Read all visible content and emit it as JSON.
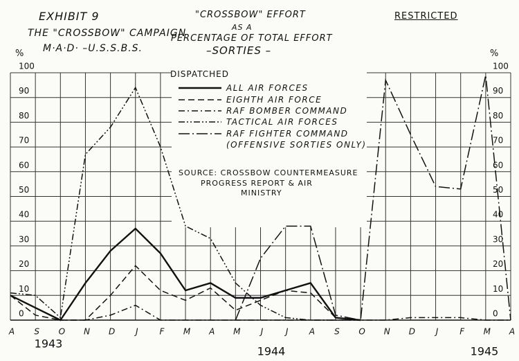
{
  "chart_data": {
    "type": "line",
    "exhibit": "EXHIBIT 9",
    "campaign": "THE \"CROSSBOW\" CAMPAIGN",
    "source_org": "M·A·D· –U.S.S.B.S.",
    "title": "\"CROSSBOW\" EFFORT",
    "title_line2": "AS A",
    "subtitle": "PERCENTAGE OF TOTAL EFFORT",
    "subtitle2": "–SORTIES –",
    "restricted": "RESTRICTED",
    "legend_title": "DISPATCHED",
    "source_line1": "SOURCE: CROSSBOW COUNTERMEASURE",
    "source_line2": "PROGRESS REPORT & AIR",
    "source_line3": "MINISTRY",
    "y_unit": "%",
    "categories": [
      "A",
      "S",
      "O",
      "N",
      "D",
      "J",
      "F",
      "M",
      "A",
      "M",
      "J",
      "J",
      "A",
      "S",
      "O",
      "N",
      "D",
      "J",
      "F",
      "M",
      "A"
    ],
    "year_labels": [
      "1943",
      "1944",
      "1945"
    ],
    "ylim": [
      0,
      100
    ],
    "yticks": [
      0,
      10,
      20,
      30,
      40,
      50,
      60,
      70,
      80,
      90,
      100
    ],
    "grid": true,
    "series": [
      {
        "name": "ALL AIR FORCES",
        "color": "#111",
        "style": "solid",
        "values": [
          10,
          5,
          0,
          15,
          28,
          37,
          27,
          12,
          15,
          9,
          9,
          12,
          15,
          1,
          0,
          null,
          null,
          null,
          null,
          null,
          null
        ]
      },
      {
        "name": "EIGHTH AIR FORCE",
        "color": "#111",
        "style": "dashed",
        "values": [
          10,
          2,
          0,
          0,
          10,
          22,
          12,
          8,
          13,
          4,
          8,
          12,
          11,
          1,
          0,
          null,
          null,
          null,
          null,
          null,
          null
        ]
      },
      {
        "name": "RAF BOMBER COMMAND",
        "color": "#111",
        "style": "dash-dot",
        "values": [
          10,
          5,
          0,
          0,
          2,
          6,
          0,
          0,
          0,
          0,
          0,
          0,
          0,
          0,
          0,
          0,
          1,
          1,
          1,
          0,
          0
        ]
      },
      {
        "name": "TACTICAL AIR FORCES",
        "color": "#111",
        "style": "dash-dot-dot",
        "values": [
          11,
          10,
          1,
          67,
          78,
          94,
          70,
          38,
          33,
          15,
          6,
          1,
          0,
          0,
          0,
          null,
          null,
          null,
          null,
          null,
          null
        ]
      },
      {
        "name": "RAF FIGHTER COMMAND (OFFENSIVE SORTIES ONLY)",
        "color": "#111",
        "style": "long-dash-dot",
        "values": [
          null,
          null,
          null,
          null,
          null,
          null,
          null,
          null,
          null,
          0,
          25,
          38,
          38,
          2,
          0,
          97,
          75,
          54,
          53,
          99,
          0
        ]
      }
    ]
  }
}
